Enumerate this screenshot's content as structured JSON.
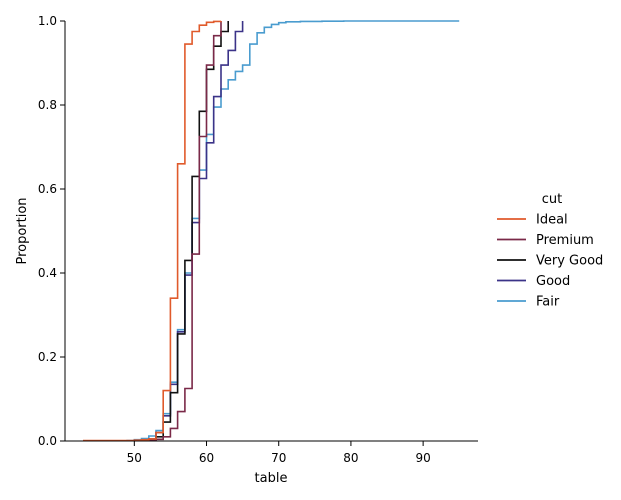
{
  "chart_data": {
    "type": "line",
    "subtype": "ecdf-step",
    "title": "",
    "xlabel": "table",
    "ylabel": "Proportion",
    "xlim": [
      40.4,
      97.6
    ],
    "ylim": [
      0,
      1
    ],
    "xticks": [
      "50",
      "60",
      "70",
      "80",
      "90"
    ],
    "xtick_values": [
      50,
      60,
      70,
      80,
      90
    ],
    "yticks": [
      "0.0",
      "0.2",
      "0.4",
      "0.6",
      "0.8",
      "1.0"
    ],
    "ytick_values": [
      0,
      0.2,
      0.4,
      0.6,
      0.8,
      1.0
    ],
    "grid": false,
    "legend_title": "cut",
    "legend_position": "right",
    "series": [
      {
        "name": "Ideal",
        "color": "#e05a2b",
        "x": [
          43,
          50,
          51,
          52,
          53,
          54,
          55,
          56,
          57,
          58,
          59,
          60,
          61,
          62
        ],
        "y": [
          0.001,
          0.002,
          0.003,
          0.005,
          0.02,
          0.12,
          0.34,
          0.66,
          0.945,
          0.975,
          0.99,
          0.997,
          0.999,
          1.0
        ]
      },
      {
        "name": "Premium",
        "color": "#7a2948",
        "x": [
          51,
          52,
          53,
          54,
          55,
          56,
          57,
          58,
          59,
          60,
          61,
          62
        ],
        "y": [
          0.001,
          0.002,
          0.004,
          0.01,
          0.03,
          0.07,
          0.125,
          0.445,
          0.725,
          0.895,
          0.965,
          1.0
        ]
      },
      {
        "name": "Very Good",
        "color": "#111111",
        "x": [
          51,
          52,
          53,
          54,
          55,
          56,
          57,
          58,
          59,
          60,
          61,
          62,
          63
        ],
        "y": [
          0.001,
          0.003,
          0.01,
          0.045,
          0.115,
          0.255,
          0.43,
          0.63,
          0.785,
          0.885,
          0.94,
          0.975,
          1.0
        ]
      },
      {
        "name": "Good",
        "color": "#3b3388",
        "x": [
          51,
          52,
          53,
          54,
          55,
          56,
          57,
          58,
          59,
          60,
          61,
          62,
          63,
          64,
          65
        ],
        "y": [
          0.002,
          0.005,
          0.02,
          0.06,
          0.135,
          0.26,
          0.395,
          0.52,
          0.625,
          0.71,
          0.82,
          0.895,
          0.93,
          0.975,
          1.0
        ]
      },
      {
        "name": "Fair",
        "color": "#4a9ccf",
        "x": [
          49,
          50,
          51,
          52,
          53,
          54,
          55,
          56,
          57,
          58,
          59,
          60,
          61,
          62,
          63,
          64,
          65,
          66,
          67,
          68,
          69,
          70,
          71,
          73,
          76,
          79,
          95
        ],
        "y": [
          0.001,
          0.003,
          0.006,
          0.012,
          0.025,
          0.065,
          0.14,
          0.265,
          0.4,
          0.53,
          0.645,
          0.73,
          0.795,
          0.838,
          0.86,
          0.88,
          0.895,
          0.945,
          0.972,
          0.985,
          0.992,
          0.996,
          0.998,
          0.999,
          0.9995,
          1.0,
          1.0
        ]
      }
    ]
  }
}
